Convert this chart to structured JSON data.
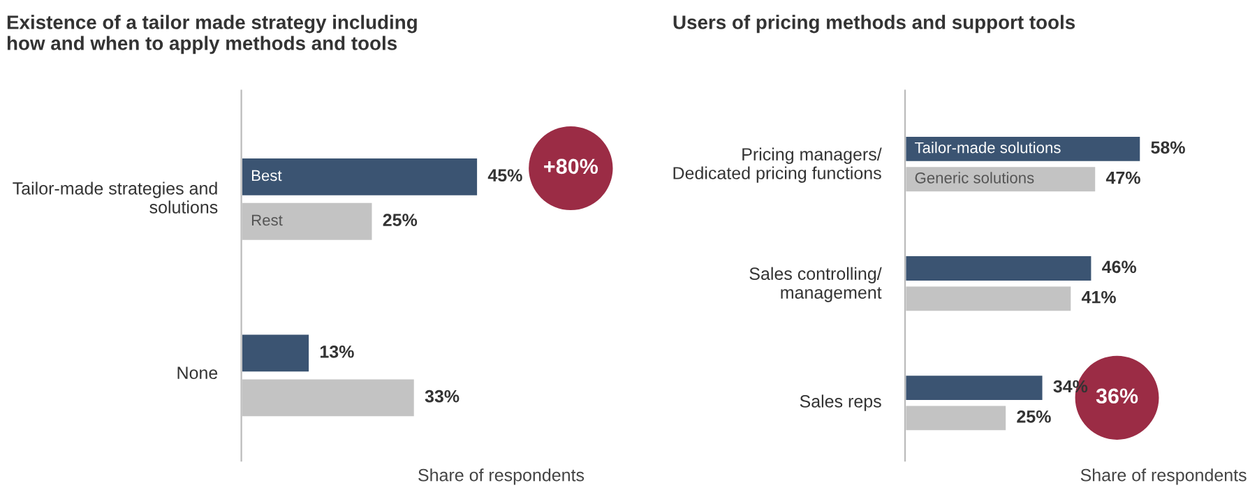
{
  "chart_data": [
    {
      "type": "bar",
      "orientation": "horizontal",
      "title": "Existence of a tailor made strategy including\nhow and when to apply methods and tools",
      "xlabel": "Share of respondents",
      "categories": [
        "Tailor-made strategies and\nsolutions",
        "None"
      ],
      "series": [
        {
          "name": "Best",
          "color": "#3b5472",
          "values": [
            45,
            13
          ],
          "value_labels": [
            "45%",
            "13%"
          ]
        },
        {
          "name": "Rest",
          "color": "#c3c3c3",
          "values": [
            25,
            33
          ],
          "value_labels": [
            "25%",
            "33%"
          ]
        }
      ],
      "annotations": [
        "+80%"
      ],
      "legend": false,
      "grid": false
    },
    {
      "type": "bar",
      "orientation": "horizontal",
      "title": "Users of pricing methods and support tools",
      "xlabel": "Share of respondents",
      "categories": [
        "Pricing managers/\nDedicated pricing functions",
        "Sales controlling/\nmanagement",
        "Sales reps"
      ],
      "series": [
        {
          "name": "Tailor-made solutions",
          "color": "#3b5472",
          "values": [
            58,
            46,
            34
          ],
          "value_labels": [
            "58%",
            "46%",
            "34%"
          ]
        },
        {
          "name": "Generic solutions",
          "color": "#c3c3c3",
          "values": [
            47,
            41,
            25
          ],
          "value_labels": [
            "47%",
            "41%",
            "25%"
          ]
        }
      ],
      "annotations": [
        "36%"
      ],
      "legend": false,
      "grid": false
    }
  ]
}
